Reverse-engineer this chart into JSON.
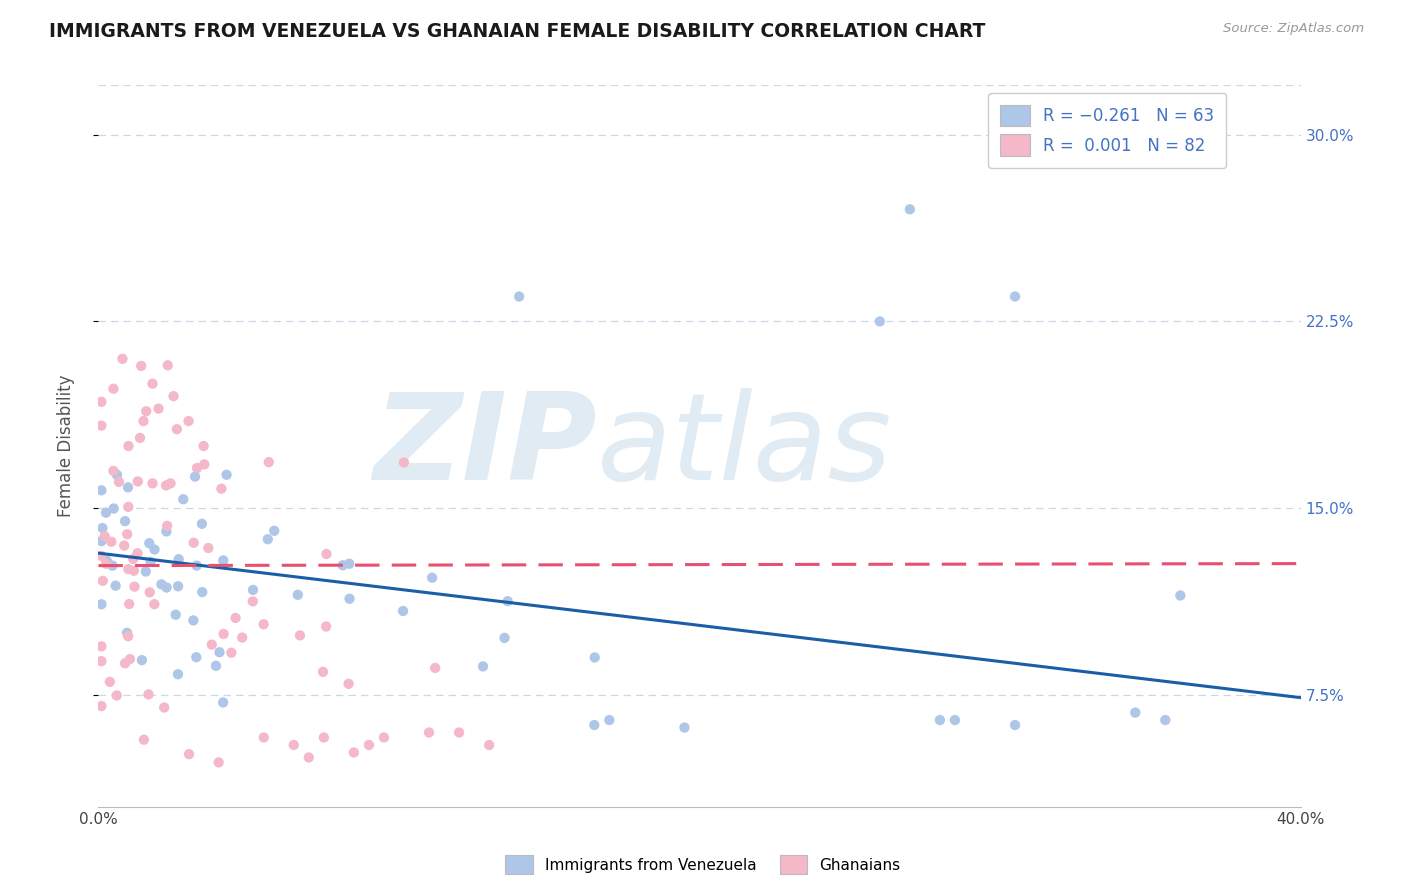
{
  "title": "IMMIGRANTS FROM VENEZUELA VS GHANAIAN FEMALE DISABILITY CORRELATION CHART",
  "source": "Source: ZipAtlas.com",
  "ylabel": "Female Disability",
  "y_ticks": [
    0.075,
    0.15,
    0.225,
    0.3
  ],
  "y_tick_labels": [
    "7.5%",
    "15.0%",
    "22.5%",
    "30.0%"
  ],
  "x_lim": [
    0.0,
    0.4
  ],
  "y_lim": [
    0.03,
    0.32
  ],
  "blue_R": -0.261,
  "blue_N": 63,
  "pink_R": 0.001,
  "pink_N": 82,
  "blue_color": "#aec6e8",
  "pink_color": "#f4b8c8",
  "blue_line_color": "#1a5ea8",
  "pink_line_color": "#e85070",
  "legend_label_blue": "Immigrants from Venezuela",
  "legend_label_pink": "Ghanaians",
  "background_color": "#ffffff",
  "grid_color": "#c8d8ea",
  "watermark_zip": "ZIP",
  "watermark_atlas": "atlas",
  "title_color": "#1a1a1a",
  "axis_label_color": "#4472c4",
  "right_tick_color": "#4472c4"
}
